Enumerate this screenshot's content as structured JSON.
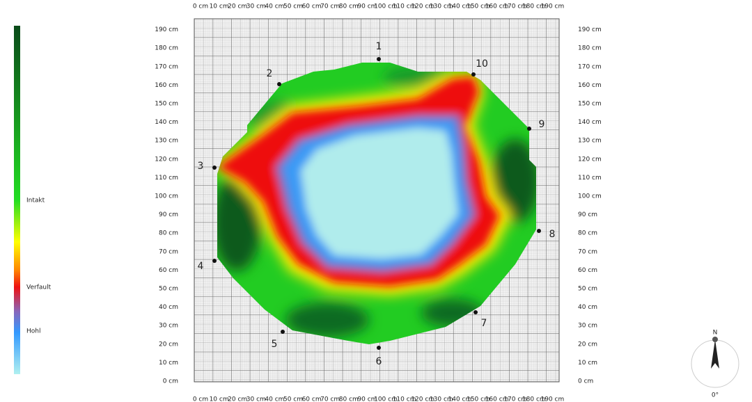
{
  "x_axis_labels": [
    "0 cm",
    "10 cm",
    "20 cm",
    "30 cm",
    "40 cm",
    "50 cm",
    "60 cm",
    "70 cm",
    "80 cm",
    "90 cm",
    "100 cm",
    "110 cm",
    "120 cm",
    "130 cm",
    "140 cm",
    "150 cm",
    "160 cm",
    "170 cm",
    "180 cm",
    "190 cm"
  ],
  "y_axis_labels": [
    "0 cm",
    "10 cm",
    "20 cm",
    "30 cm",
    "40 cm",
    "50 cm",
    "60 cm",
    "70 cm",
    "80 cm",
    "90 cm",
    "100 cm",
    "110 cm",
    "120 cm",
    "130 cm",
    "140 cm",
    "150 cm",
    "160 cm",
    "170 cm",
    "180 cm",
    "190 cm"
  ],
  "sensors": [
    "1",
    "2",
    "3",
    "4",
    "5",
    "6",
    "7",
    "8",
    "9",
    "10"
  ],
  "legend": {
    "intact": "Intakt",
    "decayed": "Verfault",
    "hollow": "Hohl"
  },
  "compass": {
    "north": "N",
    "angle": "0°"
  }
}
